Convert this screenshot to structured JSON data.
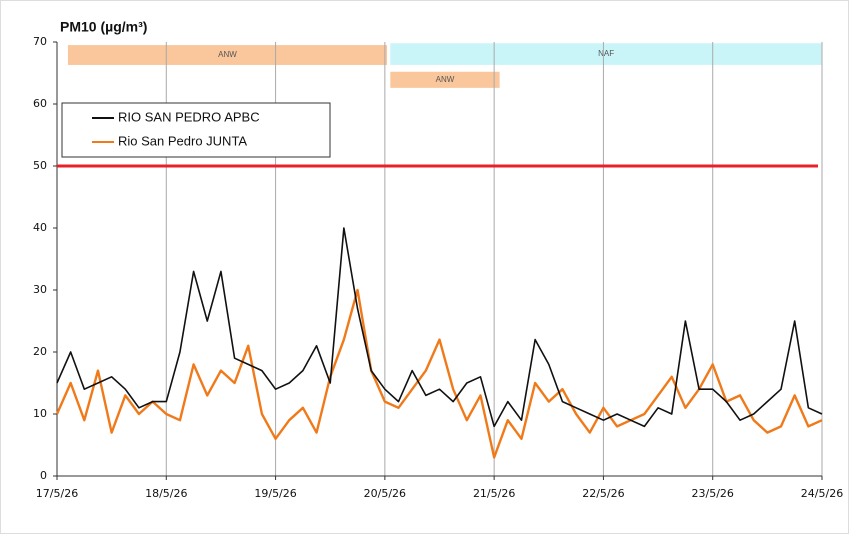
{
  "chart_data": {
    "type": "line",
    "title": "PM10 (µg/m³)",
    "x": [
      0,
      0.125,
      0.25,
      0.375,
      0.5,
      0.625,
      0.75,
      0.875,
      1,
      1.125,
      1.25,
      1.375,
      1.5,
      1.625,
      1.75,
      1.875,
      2,
      2.125,
      2.25,
      2.375,
      2.5,
      2.625,
      2.75,
      2.875,
      3,
      3.125,
      3.25,
      3.375,
      3.5,
      3.625,
      3.75,
      3.875,
      4,
      4.125,
      4.25,
      4.375,
      4.5,
      4.625,
      4.75,
      4.875,
      5,
      5.125,
      5.25,
      5.375,
      5.5,
      5.625,
      5.75,
      5.875,
      6,
      6.125,
      6.25,
      6.375,
      6.5,
      6.625,
      6.75,
      6.875,
      7
    ],
    "series": [
      {
        "name": "RIO SAN PEDRO APBC",
        "color": "#111111",
        "values": [
          15,
          20,
          14,
          15,
          16,
          14,
          11,
          12,
          12,
          20,
          33,
          25,
          33,
          19,
          18,
          17,
          14,
          15,
          17,
          21,
          15,
          40,
          27,
          17,
          14,
          12,
          17,
          13,
          14,
          12,
          15,
          16,
          8,
          12,
          9,
          22,
          18,
          12,
          11,
          10,
          9,
          10,
          9,
          8,
          11,
          10,
          25,
          14,
          14,
          12,
          9,
          10,
          12,
          14,
          25,
          11,
          10
        ]
      },
      {
        "name": "Rio San Pedro JUNTA",
        "color": "#f07a1a",
        "values": [
          10,
          15,
          9,
          17,
          7,
          13,
          10,
          12,
          10,
          9,
          18,
          13,
          17,
          15,
          21,
          10,
          6,
          9,
          11,
          7,
          16,
          22,
          30,
          17,
          12,
          11,
          14,
          17,
          22,
          14,
          9,
          13,
          3,
          9,
          6,
          15,
          12,
          14,
          10,
          7,
          11,
          8,
          9,
          10,
          13,
          16,
          11,
          14,
          18,
          12,
          13,
          9,
          7,
          8,
          13,
          8,
          9
        ]
      }
    ],
    "xlim": [
      0,
      7
    ],
    "xticks": [
      {
        "value": 0,
        "label": "17/5/26"
      },
      {
        "value": 1,
        "label": "18/5/26"
      },
      {
        "value": 2,
        "label": "19/5/26"
      },
      {
        "value": 3,
        "label": "20/5/26"
      },
      {
        "value": 4,
        "label": "21/5/26"
      },
      {
        "value": 5,
        "label": "22/5/26"
      },
      {
        "value": 6,
        "label": "23/5/26"
      },
      {
        "value": 7,
        "label": "24/5/26"
      }
    ],
    "ylim": [
      0,
      70
    ],
    "yticks": [
      0,
      10,
      20,
      30,
      40,
      50,
      60,
      70
    ],
    "x_grid": true,
    "legend": "upper-left",
    "threshold": {
      "value": 50,
      "color": "#e8202a"
    },
    "annotations": [
      {
        "label": "ANW",
        "x": [
          0.1,
          3.02
        ],
        "y": [
          66.3,
          69.5
        ],
        "color": "#f9c79b"
      },
      {
        "label": "NAF",
        "x": [
          3.05,
          7
        ],
        "y": [
          66.3,
          69.8
        ],
        "color": "#c9f5f9"
      },
      {
        "label": "ANW",
        "x": [
          3.05,
          4.05
        ],
        "y": [
          62.6,
          65.2
        ],
        "color": "#f9c79b"
      }
    ]
  }
}
